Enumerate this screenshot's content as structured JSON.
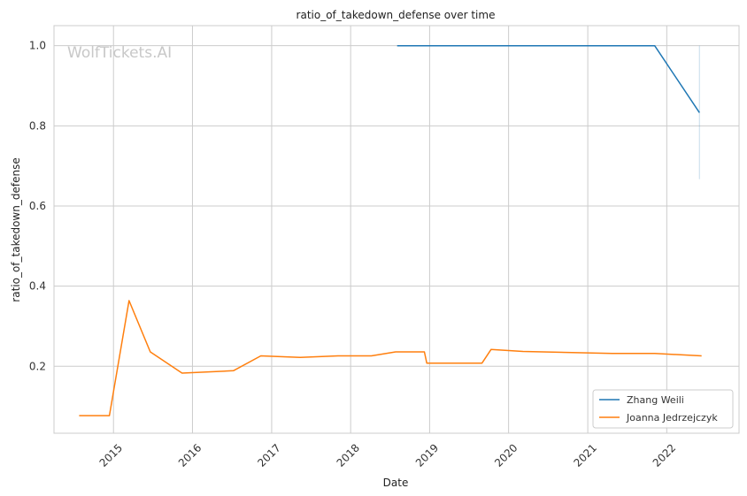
{
  "chart_data": {
    "type": "line",
    "title": "ratio_of_takedown_defense over time",
    "xlabel": "Date",
    "ylabel": "ratio_of_takedown_defense",
    "watermark": "WolfTickets.AI",
    "grid": true,
    "legend_position": "bottom-right",
    "xlim": [
      "2014-04-01",
      "2022-12-01"
    ],
    "ylim": [
      0.033,
      1.05
    ],
    "x_ticks": [
      "2015",
      "2016",
      "2017",
      "2018",
      "2019",
      "2020",
      "2021",
      "2022"
    ],
    "y_ticks": [
      "0.2",
      "0.4",
      "0.6",
      "0.8",
      "1.0"
    ],
    "series": [
      {
        "name": "Zhang Weili",
        "color": "#1f77b4",
        "points": [
          {
            "x": "2018-08-04",
            "y": 1.0
          },
          {
            "x": "2018-11-24",
            "y": 1.0
          },
          {
            "x": "2019-08-31",
            "y": 1.0
          },
          {
            "x": "2020-03-07",
            "y": 1.0
          },
          {
            "x": "2021-04-24",
            "y": 1.0
          },
          {
            "x": "2021-11-06",
            "y": 1.0
          },
          {
            "x": "2022-06-01",
            "y": 0.833
          }
        ],
        "error_band": {
          "x": "2022-06-01",
          "low": 0.667,
          "high": 1.0
        }
      },
      {
        "name": "Joanna Jedrzejczyk",
        "color": "#ff7f0e",
        "points": [
          {
            "x": "2014-07-26",
            "y": 0.077
          },
          {
            "x": "2014-12-13",
            "y": 0.077
          },
          {
            "x": "2015-03-14",
            "y": 0.364
          },
          {
            "x": "2015-06-20",
            "y": 0.236
          },
          {
            "x": "2015-11-14",
            "y": 0.183
          },
          {
            "x": "2016-07-08",
            "y": 0.189
          },
          {
            "x": "2016-11-12",
            "y": 0.226
          },
          {
            "x": "2017-05-13",
            "y": 0.222
          },
          {
            "x": "2017-11-04",
            "y": 0.226
          },
          {
            "x": "2018-04-07",
            "y": 0.226
          },
          {
            "x": "2018-07-28",
            "y": 0.236
          },
          {
            "x": "2018-12-08",
            "y": 0.236
          },
          {
            "x": "2018-12-19",
            "y": 0.208
          },
          {
            "x": "2019-08-31",
            "y": 0.208
          },
          {
            "x": "2019-10-12",
            "y": 0.242
          },
          {
            "x": "2020-03-07",
            "y": 0.237
          },
          {
            "x": "2021-04-24",
            "y": 0.232
          },
          {
            "x": "2021-11-06",
            "y": 0.232
          },
          {
            "x": "2022-06-11",
            "y": 0.226
          }
        ]
      }
    ]
  }
}
